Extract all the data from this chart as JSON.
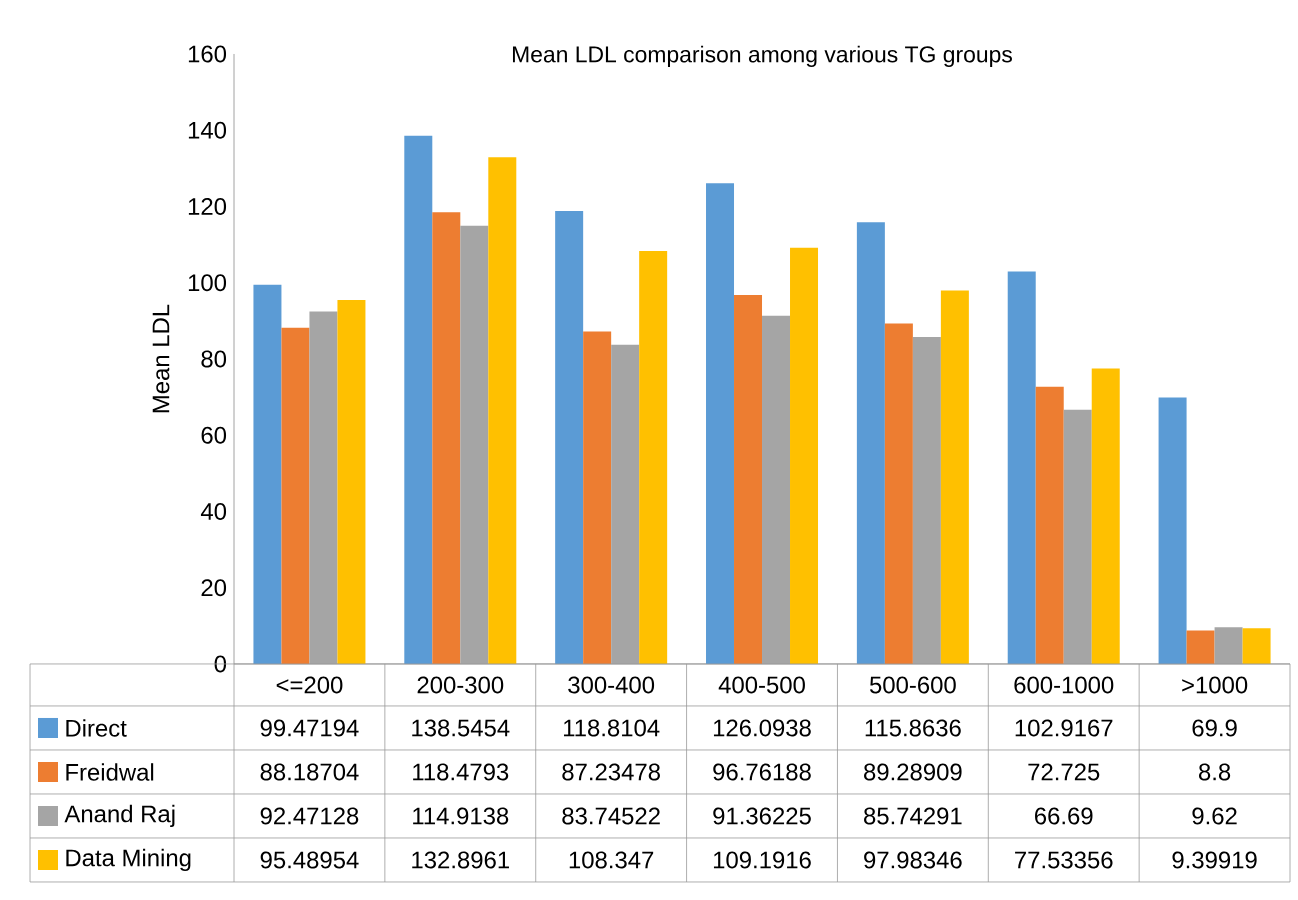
{
  "chart_data": {
    "type": "bar",
    "title": "Mean LDL comparison among various TG groups",
    "ylabel": "Mean LDL",
    "categories": [
      "<=200",
      "200-300",
      "300-400",
      "400-500",
      "500-600",
      "600-1000",
      ">1000"
    ],
    "series": [
      {
        "name": "Direct",
        "color": "#5b9bd5",
        "values": [
          99.47194,
          138.5454,
          118.8104,
          126.0938,
          115.8636,
          102.9167,
          69.9
        ]
      },
      {
        "name": "Freidwal",
        "color": "#ed7d31",
        "values": [
          88.18704,
          118.4793,
          87.23478,
          96.76188,
          89.28909,
          72.725,
          8.8
        ]
      },
      {
        "name": "Anand Raj",
        "color": "#a5a5a5",
        "values": [
          92.47128,
          114.9138,
          83.74522,
          91.36225,
          85.74291,
          66.69,
          9.62
        ]
      },
      {
        "name": "Data Mining",
        "color": "#ffc000",
        "values": [
          95.48954,
          132.8961,
          108.347,
          109.1916,
          97.98346,
          77.53356,
          9.39919
        ]
      }
    ],
    "ylim": [
      0,
      160
    ],
    "yticks": [
      0,
      20,
      40,
      60,
      80,
      100,
      120,
      140,
      160
    ],
    "data_labels": true,
    "legend": "bottom",
    "grid": false
  }
}
